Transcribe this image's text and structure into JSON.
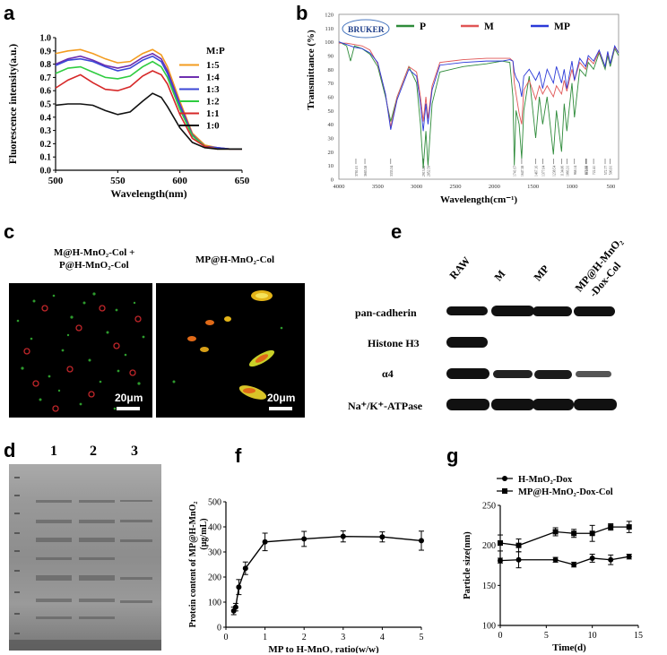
{
  "panels": {
    "a": {
      "letter": "a",
      "chart_data": {
        "type": "line",
        "xlabel": "Wavelength(nm)",
        "ylabel": "Fluorescence intensity(a.u.)",
        "xlim": [
          500,
          650
        ],
        "ylim": [
          0.0,
          1.0
        ],
        "xticks": [
          "500",
          "550",
          "600",
          "650"
        ],
        "yticks": [
          "0.0",
          "0.1",
          "0.2",
          "0.3",
          "0.4",
          "0.5",
          "0.6",
          "0.7",
          "0.8",
          "0.9",
          "1.0"
        ],
        "legend_title": "M:P",
        "legend_position": "right",
        "series": [
          {
            "name": "1:5",
            "color": "#f39c1f",
            "x": [
              500,
              510,
              520,
              530,
              540,
              550,
              560,
              570,
              578,
              585,
              590,
              600,
              610,
              620,
              630,
              640,
              650
            ],
            "y": [
              0.88,
              0.9,
              0.91,
              0.88,
              0.84,
              0.81,
              0.82,
              0.88,
              0.91,
              0.87,
              0.78,
              0.52,
              0.28,
              0.19,
              0.17,
              0.16,
              0.16
            ]
          },
          {
            "name": "1:4",
            "color": "#6e2fb0",
            "x": [
              500,
              510,
              520,
              530,
              540,
              550,
              560,
              570,
              578,
              585,
              590,
              600,
              610,
              620,
              630,
              640,
              650
            ],
            "y": [
              0.8,
              0.84,
              0.86,
              0.83,
              0.79,
              0.77,
              0.79,
              0.85,
              0.88,
              0.84,
              0.75,
              0.5,
              0.27,
              0.18,
              0.17,
              0.16,
              0.16
            ]
          },
          {
            "name": "1:3",
            "color": "#3b47d6",
            "x": [
              500,
              510,
              520,
              530,
              540,
              550,
              560,
              570,
              578,
              585,
              590,
              600,
              610,
              620,
              630,
              640,
              650
            ],
            "y": [
              0.79,
              0.83,
              0.84,
              0.82,
              0.78,
              0.75,
              0.77,
              0.83,
              0.86,
              0.82,
              0.73,
              0.48,
              0.26,
              0.18,
              0.17,
              0.16,
              0.16
            ]
          },
          {
            "name": "1:2",
            "color": "#2ecc40",
            "x": [
              500,
              510,
              520,
              530,
              540,
              550,
              560,
              570,
              578,
              585,
              590,
              600,
              610,
              620,
              630,
              640,
              650
            ],
            "y": [
              0.73,
              0.77,
              0.78,
              0.74,
              0.7,
              0.69,
              0.71,
              0.78,
              0.82,
              0.78,
              0.7,
              0.46,
              0.26,
              0.18,
              0.16,
              0.16,
              0.16
            ]
          },
          {
            "name": "1:1",
            "color": "#d62828",
            "x": [
              500,
              510,
              520,
              530,
              540,
              550,
              560,
              570,
              578,
              585,
              590,
              600,
              610,
              620,
              630,
              640,
              650
            ],
            "y": [
              0.62,
              0.68,
              0.72,
              0.66,
              0.61,
              0.6,
              0.63,
              0.71,
              0.75,
              0.72,
              0.65,
              0.42,
              0.24,
              0.18,
              0.16,
              0.16,
              0.16
            ]
          },
          {
            "name": "1:0",
            "color": "#111111",
            "x": [
              500,
              510,
              520,
              530,
              540,
              550,
              560,
              570,
              578,
              585,
              590,
              600,
              610,
              620,
              630,
              640,
              650
            ],
            "y": [
              0.49,
              0.5,
              0.5,
              0.49,
              0.45,
              0.42,
              0.44,
              0.52,
              0.58,
              0.55,
              0.48,
              0.32,
              0.21,
              0.17,
              0.16,
              0.16,
              0.16
            ]
          }
        ]
      }
    },
    "b": {
      "letter": "b",
      "logo": "BRUKER",
      "chart_data": {
        "type": "line",
        "xlabel": "Wavelength(cm⁻¹)",
        "ylabel": "Transmittance (%)",
        "xlim": [
          4000,
          400
        ],
        "ylim": [
          0,
          120
        ],
        "xticks": [
          "4000",
          "3500",
          "3000",
          "2500",
          "2000",
          "1500",
          "1000",
          "500"
        ],
        "yticks": [
          "0",
          "10",
          "20",
          "30",
          "40",
          "50",
          "60",
          "70",
          "80",
          "90",
          "100",
          "110",
          "120"
        ],
        "legend_position": "top",
        "peak_labels": [
          "3781.01",
          "3665.58",
          "3333.34",
          "2913.80",
          "2852.59",
          "1741.67",
          "1647.38",
          "1467.16",
          "1377.04",
          "1238.54",
          "1134.06",
          "1066.31",
          "968.14",
          "823.82",
          "814.00",
          "722.41",
          "572.77",
          "506.91"
        ],
        "peak_positions": [
          3781,
          3665,
          3333,
          2914,
          2853,
          1742,
          1647,
          1467,
          1377,
          1239,
          1134,
          1066,
          968,
          824,
          814,
          722,
          573,
          507
        ],
        "series": [
          {
            "name": "P",
            "color": "#2e8b3a",
            "x": [
              4000,
              3900,
              3850,
              3800,
              3700,
              3600,
              3500,
              3400,
              3333,
              3250,
              3100,
              3000,
              2950,
              2914,
              2880,
              2853,
              2800,
              2700,
              2400,
              2100,
              1900,
              1800,
              1760,
              1742,
              1720,
              1680,
              1647,
              1620,
              1550,
              1467,
              1420,
              1377,
              1320,
              1239,
              1200,
              1134,
              1100,
              1066,
              1000,
              968,
              900,
              824,
              790,
              722,
              650,
              573,
              540,
              507,
              450,
              400
            ],
            "y": [
              100,
              97,
              86,
              97,
              95,
              91,
              82,
              60,
              42,
              60,
              82,
              70,
              40,
              8,
              35,
              10,
              55,
              78,
              82,
              84,
              86,
              85,
              60,
              10,
              50,
              40,
              15,
              50,
              75,
              30,
              60,
              40,
              60,
              18,
              50,
              20,
              55,
              35,
              70,
              45,
              80,
              75,
              85,
              80,
              92,
              80,
              90,
              82,
              95,
              90
            ]
          },
          {
            "name": "M",
            "color": "#e05555",
            "x": [
              4000,
              3900,
              3800,
              3700,
              3600,
              3500,
              3400,
              3333,
              3250,
              3100,
              3000,
              2950,
              2914,
              2880,
              2853,
              2800,
              2700,
              2400,
              2100,
              1900,
              1800,
              1760,
              1742,
              1720,
              1680,
              1647,
              1620,
              1550,
              1467,
              1420,
              1377,
              1320,
              1239,
              1200,
              1134,
              1100,
              1066,
              1000,
              968,
              900,
              824,
              790,
              722,
              650,
              573,
              540,
              507,
              450,
              400
            ],
            "y": [
              99,
              99,
              98,
              97,
              94,
              84,
              62,
              38,
              60,
              82,
              78,
              60,
              42,
              60,
              44,
              68,
              85,
              87,
              88,
              88,
              88,
              86,
              70,
              62,
              48,
              40,
              65,
              72,
              58,
              68,
              62,
              68,
              60,
              68,
              62,
              72,
              64,
              80,
              72,
              85,
              80,
              88,
              84,
              93,
              82,
              92,
              84,
              96,
              92
            ]
          },
          {
            "name": "MP",
            "color": "#2a39d8",
            "x": [
              4000,
              3900,
              3800,
              3700,
              3600,
              3500,
              3400,
              3333,
              3250,
              3100,
              3000,
              2950,
              2914,
              2880,
              2853,
              2800,
              2700,
              2400,
              2100,
              1900,
              1800,
              1760,
              1742,
              1720,
              1680,
              1647,
              1620,
              1550,
              1467,
              1420,
              1377,
              1320,
              1239,
              1200,
              1134,
              1100,
              1066,
              1000,
              968,
              900,
              824,
              790,
              722,
              650,
              573,
              540,
              507,
              450,
              400
            ],
            "y": [
              100,
              98,
              96,
              95,
              92,
              85,
              62,
              36,
              58,
              80,
              75,
              55,
              35,
              55,
              40,
              65,
              83,
              85,
              86,
              86,
              87,
              86,
              78,
              74,
              70,
              60,
              75,
              80,
              72,
              78,
              66,
              80,
              70,
              82,
              70,
              80,
              66,
              86,
              72,
              88,
              82,
              90,
              86,
              94,
              82,
              93,
              84,
              97,
              92
            ]
          }
        ]
      }
    },
    "c": {
      "letter": "c",
      "left_title_line1": "M@H-MnO₂-Col +",
      "left_title_line2": "P@H-MnO₂-Col",
      "right_title": "MP@H-MnO₂-Col",
      "left_scale": "20μm",
      "right_scale": "20μm"
    },
    "d": {
      "letter": "d",
      "lanes": [
        "1",
        "2",
        "3"
      ]
    },
    "e": {
      "letter": "e",
      "columns": [
        "RAW",
        "M",
        "MP",
        "MP@H-MnO₂",
        "-Dox-Col"
      ],
      "rows": [
        "pan-cadherin",
        "Histone H3",
        "α4",
        "Na⁺/K⁺-ATPase"
      ]
    },
    "f": {
      "letter": "f",
      "chart_data": {
        "type": "line",
        "xlabel": "MP to H-MnO₂ ratio(w/w)",
        "ylabel_line1": "Protein content of MP@H-MnO₂",
        "ylabel_line2": "(μg/mL)",
        "xlim": [
          0,
          5
        ],
        "ylim": [
          0,
          500
        ],
        "xticks": [
          "0",
          "1",
          "2",
          "3",
          "4",
          "5"
        ],
        "yticks": [
          "0",
          "100",
          "200",
          "300",
          "400",
          "500"
        ],
        "series": [
          {
            "x": [
              0.2,
              0.25,
              0.33,
              0.5,
              1,
              2,
              3,
              4,
              5
            ],
            "y": [
              65,
              80,
              160,
              235,
              340,
              352,
              362,
              360,
              345
            ],
            "err": [
              15,
              15,
              30,
              25,
              35,
              30,
              22,
              20,
              38
            ]
          }
        ]
      }
    },
    "g": {
      "letter": "g",
      "chart_data": {
        "type": "line",
        "xlabel": "Time(d)",
        "ylabel": "Particle size(nm)",
        "xlim": [
          0,
          15
        ],
        "ylim": [
          100,
          250
        ],
        "xticks": [
          "0",
          "5",
          "10",
          "15"
        ],
        "yticks": [
          "100",
          "150",
          "200",
          "250"
        ],
        "legend_position": "top-left",
        "series": [
          {
            "name": "H-MnO₂-Dox",
            "marker": "circle",
            "x": [
              0,
              2,
              6,
              8,
              10,
              12,
              14
            ],
            "y": [
              181,
              182,
              182,
              176,
              184,
              182,
              186
            ],
            "err": [
              3,
              10,
              3,
              3,
              5,
              6,
              3
            ]
          },
          {
            "name": "MP@H-MnO₂-Dox-Col",
            "marker": "square",
            "x": [
              0,
              2,
              6,
              8,
              10,
              12,
              14
            ],
            "y": [
              203,
              200,
              217,
              215,
              215,
              223,
              223
            ],
            "err": [
              10,
              8,
              5,
              5,
              10,
              4,
              7
            ]
          }
        ]
      }
    }
  }
}
